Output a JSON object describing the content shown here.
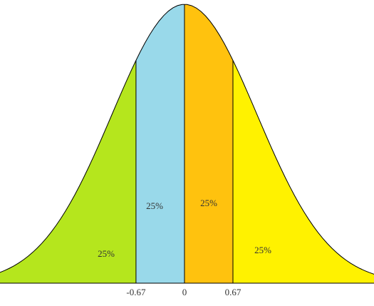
{
  "chart_data": {
    "type": "area",
    "xlim": [
      -2.55,
      2.62
    ],
    "ylim": [
      0,
      0.4
    ],
    "xticks": [
      -0.67,
      0,
      0.67
    ],
    "values": [
      25,
      25,
      25,
      25
    ],
    "value_labels": [
      "25%",
      "25%",
      "25%",
      "25%"
    ],
    "colors": [
      "#b5e61d",
      "#99d9ea",
      "#ffc20e",
      "#fff200"
    ]
  }
}
